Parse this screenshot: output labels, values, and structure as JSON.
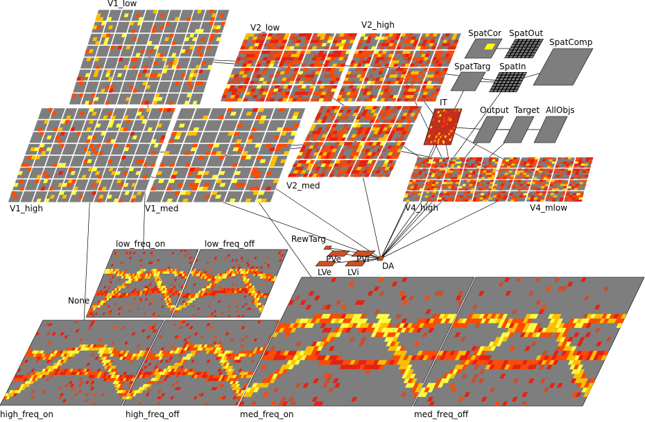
{
  "layers": [
    {
      "id": "V1_low",
      "label": "V1_low",
      "sx": 11,
      "sy": 8,
      "pattern": "grid"
    },
    {
      "id": "V1_high",
      "label": "V1_high",
      "sx": 11,
      "sy": 8,
      "pattern": "grid"
    },
    {
      "id": "V1_med",
      "label": "V1_med",
      "sx": 8,
      "sy": 8,
      "pattern": "grid"
    },
    {
      "id": "V2_low",
      "label": "V2_low",
      "sx": 5,
      "sy": 4,
      "pattern": "red"
    },
    {
      "id": "V2_high",
      "label": "V2_high",
      "sx": 5,
      "sy": 4,
      "pattern": "red"
    },
    {
      "id": "V2_med",
      "label": "V2_med",
      "sx": 5,
      "sy": 4,
      "pattern": "red"
    },
    {
      "id": "IT",
      "label": "IT",
      "pattern": "blobs"
    },
    {
      "id": "V4_high",
      "label": "V4_high",
      "sx": 5,
      "sy": 4,
      "pattern": "red"
    },
    {
      "id": "V4_mlow",
      "label": "V4_mlow",
      "sx": 5,
      "sy": 4,
      "pattern": "red"
    },
    {
      "id": "SpatCor",
      "label": "SpatCor",
      "pattern": "yellow"
    },
    {
      "id": "SpatOut",
      "label": "SpatOut",
      "pattern": "mesh"
    },
    {
      "id": "SpatComp",
      "label": "SpatComp",
      "pattern": "plain"
    },
    {
      "id": "SpatTarg",
      "label": "SpatTarg",
      "pattern": "plain"
    },
    {
      "id": "SpatIn",
      "label": "SpatIn",
      "pattern": "mesh"
    },
    {
      "id": "Output",
      "label": "Output",
      "pattern": "plain"
    },
    {
      "id": "Target",
      "label": "Target",
      "pattern": "plain"
    },
    {
      "id": "AllObjs",
      "label": "AllObjs",
      "pattern": "plain"
    },
    {
      "id": "low_freq_on",
      "label": "low_freq_on",
      "pattern": "image"
    },
    {
      "id": "low_freq_off",
      "label": "low_freq_off",
      "pattern": "image"
    },
    {
      "id": "high_freq_on",
      "label": "high_freq_on",
      "pattern": "image"
    },
    {
      "id": "high_freq_off",
      "label": "high_freq_off",
      "pattern": "image"
    },
    {
      "id": "med_freq_on",
      "label": "med_freq_on",
      "pattern": "image"
    },
    {
      "id": "med_freq_off",
      "label": "med_freq_off",
      "pattern": "image"
    },
    {
      "id": "RewTarg",
      "label": "RewTarg",
      "pattern": "small"
    },
    {
      "id": "PVe",
      "label": "PVe",
      "pattern": "small"
    },
    {
      "id": "PVi",
      "label": "PVi",
      "pattern": "small"
    },
    {
      "id": "LVe",
      "label": "LVe",
      "pattern": "small"
    },
    {
      "id": "LVi",
      "label": "LVi",
      "pattern": "small"
    },
    {
      "id": "DA",
      "label": "DA",
      "pattern": "small"
    },
    {
      "id": "None",
      "label": "None",
      "pattern": "none"
    }
  ],
  "projections": [
    [
      "V1_low",
      "V2_low"
    ],
    [
      "V1_low",
      "V2_high"
    ],
    [
      "V1_high",
      "V2_med"
    ],
    [
      "V1_med",
      "V2_med"
    ],
    [
      "V2_low",
      "V4_high"
    ],
    [
      "V2_high",
      "V4_high"
    ],
    [
      "V2_med",
      "V4_mlow"
    ],
    [
      "V2_high",
      "IT"
    ],
    [
      "V4_high",
      "IT"
    ],
    [
      "V4_mlow",
      "IT"
    ],
    [
      "IT",
      "Output"
    ],
    [
      "Output",
      "Target"
    ],
    [
      "Output",
      "AllObjs"
    ],
    [
      "SpatIn",
      "SpatComp"
    ],
    [
      "SpatTarg",
      "SpatIn"
    ],
    [
      "SpatCor",
      "SpatOut"
    ],
    [
      "V2_high",
      "SpatIn"
    ],
    [
      "low_freq_on",
      "V1_low"
    ],
    [
      "high_freq_on",
      "V1_high"
    ],
    [
      "med_freq_on",
      "V1_med"
    ],
    [
      "DA",
      "V1_high"
    ],
    [
      "DA",
      "V1_med"
    ],
    [
      "DA",
      "V2_med"
    ],
    [
      "DA",
      "V4_high"
    ],
    [
      "DA",
      "V4_mlow"
    ],
    [
      "DA",
      "IT"
    ],
    [
      "DA",
      "Output"
    ],
    [
      "DA",
      "SpatIn"
    ],
    [
      "DA",
      "SpatTarg"
    ],
    [
      "DA",
      "Target"
    ],
    [
      "PVi",
      "DA"
    ],
    [
      "LVi",
      "DA"
    ],
    [
      "LVe",
      "DA"
    ],
    [
      "PVe",
      "DA"
    ],
    [
      "RewTarg",
      "PVe"
    ],
    [
      "RewTarg",
      "PVi"
    ]
  ]
}
